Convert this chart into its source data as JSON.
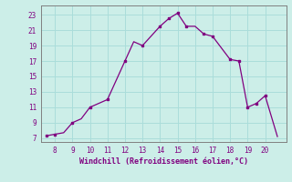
{
  "x": [
    7.5,
    8.0,
    8.5,
    9.0,
    9.5,
    10.0,
    11.0,
    12.0,
    12.5,
    13.0,
    14.0,
    14.5,
    15.0,
    15.5,
    16.0,
    16.5,
    17.0,
    18.0,
    18.5,
    19.0,
    19.5,
    20.0,
    20.7
  ],
  "y": [
    7.3,
    7.5,
    7.7,
    9.0,
    9.5,
    11.0,
    12.0,
    17.0,
    19.5,
    19.0,
    21.5,
    22.5,
    23.2,
    21.5,
    21.5,
    20.5,
    20.2,
    17.2,
    17.0,
    11.0,
    11.5,
    12.5,
    7.2
  ],
  "markers_x": [
    7.5,
    8.0,
    9.0,
    10.0,
    11.0,
    12.0,
    13.0,
    14.0,
    14.5,
    15.0,
    15.5,
    16.5,
    17.0,
    18.0,
    18.5,
    19.0,
    19.5,
    20.0
  ],
  "markers_y": [
    7.3,
    7.5,
    9.0,
    11.0,
    12.0,
    17.0,
    19.0,
    21.5,
    22.5,
    23.2,
    21.5,
    20.5,
    20.2,
    17.2,
    17.0,
    11.0,
    11.5,
    12.5
  ],
  "line_color": "#800080",
  "marker_color": "#800080",
  "bg_color": "#cceee8",
  "grid_color": "#aaddda",
  "axis_color": "#808080",
  "text_color": "#800080",
  "xlabel": "Windchill (Refroidissement éolien,°C)",
  "xlim": [
    7.2,
    21.2
  ],
  "ylim": [
    6.5,
    24.2
  ],
  "xticks": [
    8,
    9,
    10,
    11,
    12,
    13,
    14,
    15,
    16,
    17,
    18,
    19,
    20
  ],
  "yticks": [
    7,
    9,
    11,
    13,
    15,
    17,
    19,
    21,
    23
  ]
}
